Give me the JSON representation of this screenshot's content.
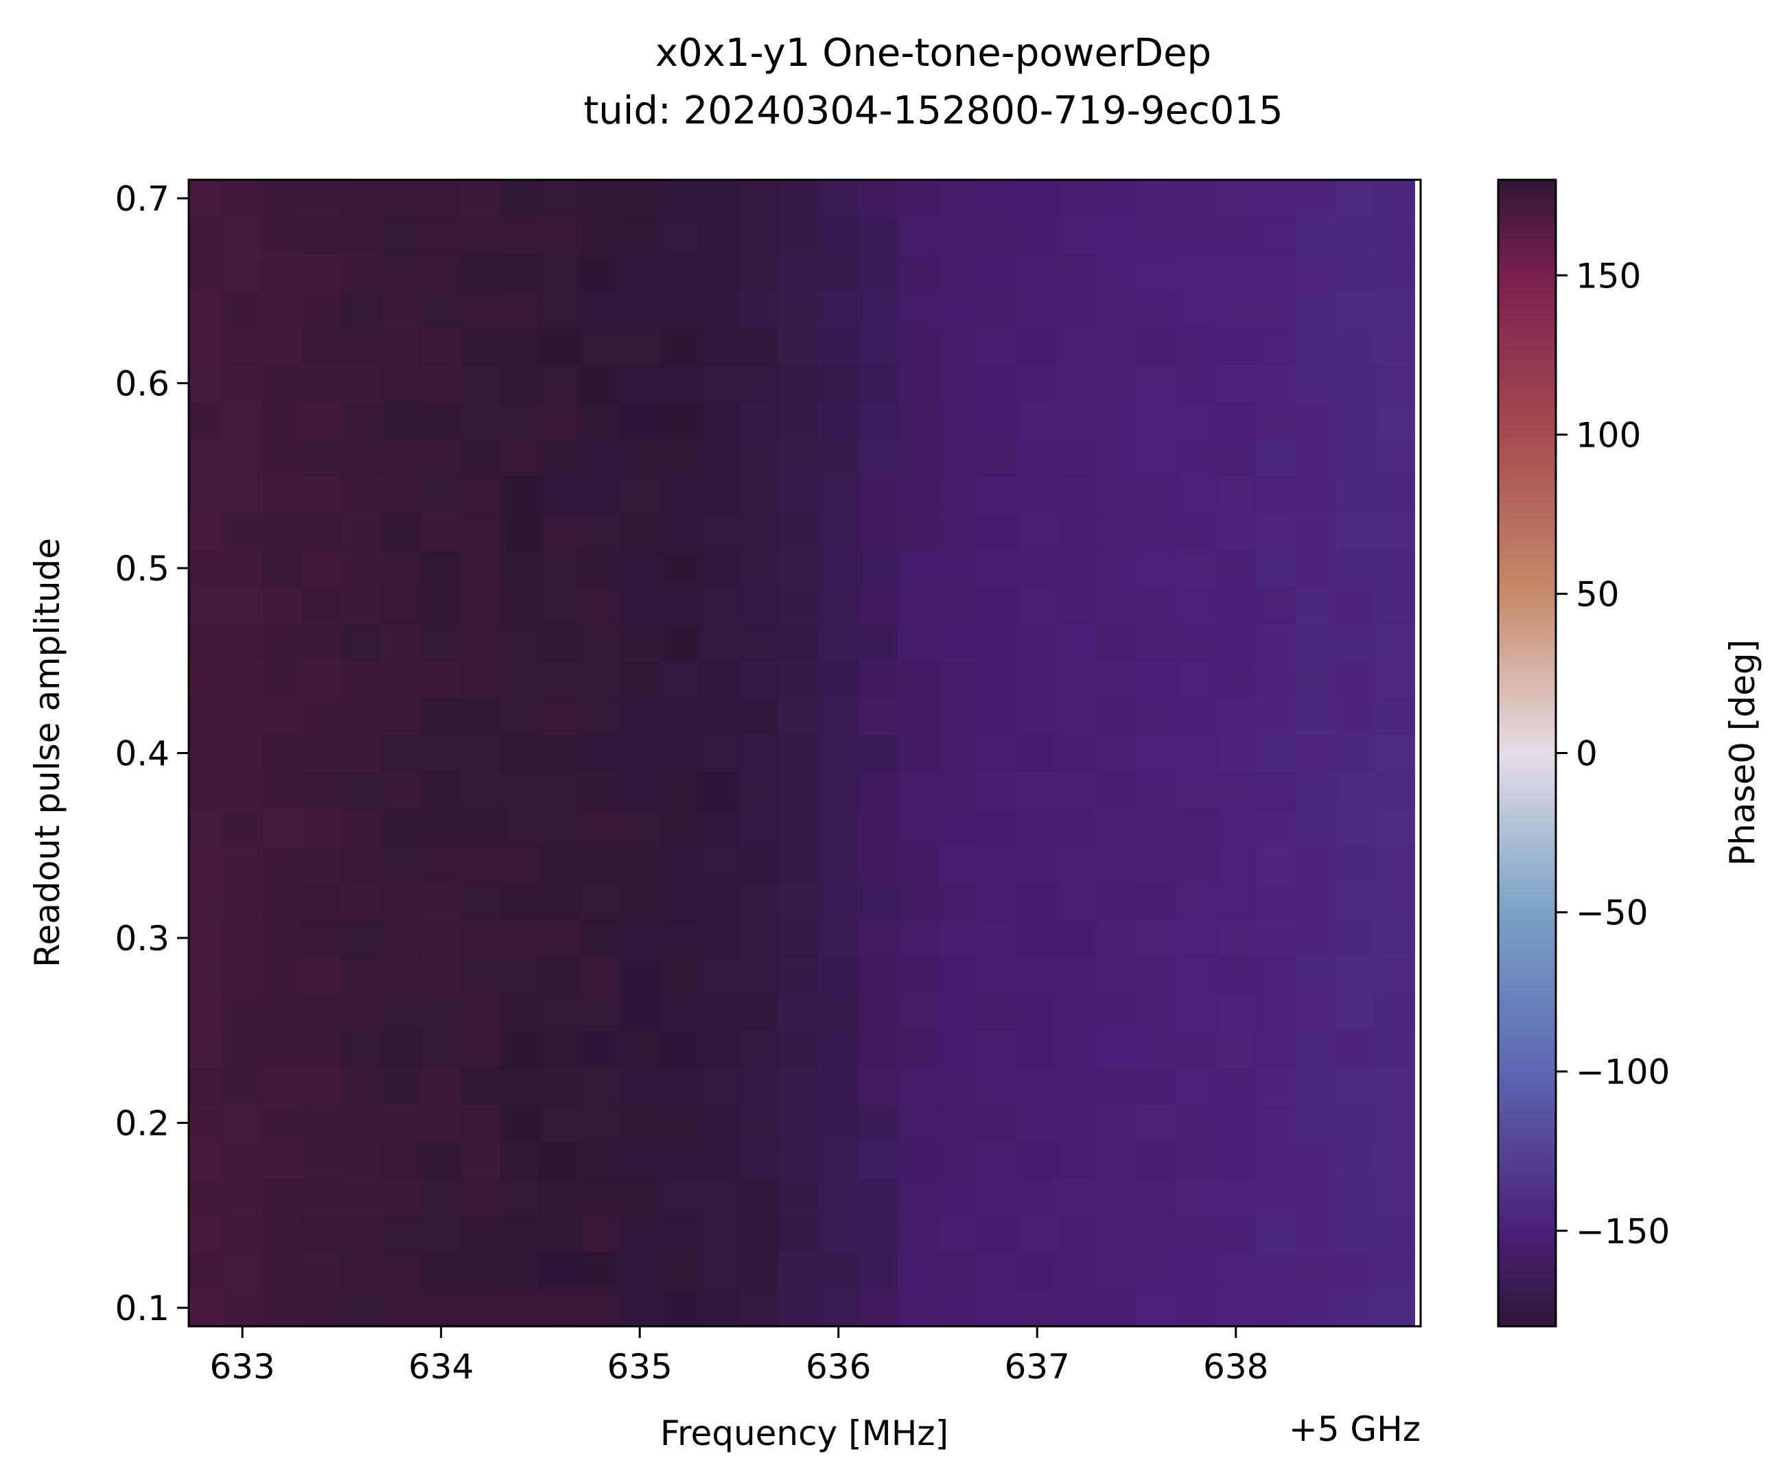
{
  "chart_data": {
    "type": "heatmap",
    "title": "x0x1-y1 One-tone-powerDep",
    "subtitle": "tuid: 20240304-152800-719-9ec015",
    "xlabel": "Frequency [MHz]",
    "x_offset_label": "+5 GHz",
    "ylabel": "Readout pulse amplitude",
    "colorbar_label": "Phase0 [deg]",
    "xlim": [
      632.73,
      638.93
    ],
    "ylim": [
      0.09,
      0.71
    ],
    "clim": [
      -180,
      180
    ],
    "x_ticks": [
      633,
      634,
      635,
      636,
      637,
      638
    ],
    "x_tick_labels": [
      "633",
      "634",
      "635",
      "636",
      "637",
      "638"
    ],
    "y_ticks": [
      0.1,
      0.2,
      0.3,
      0.4,
      0.5,
      0.6,
      0.7
    ],
    "y_tick_labels": [
      "0.1",
      "0.2",
      "0.3",
      "0.4",
      "0.5",
      "0.6",
      "0.7"
    ],
    "cbar_ticks": [
      150,
      100,
      50,
      0,
      -50,
      -100,
      -150
    ],
    "cbar_tick_labels": [
      "150",
      "100",
      "50",
      "0",
      "−50",
      "−100",
      "−150"
    ],
    "colormap": "twilight_shifted",
    "colormap_stops": [
      [
        -180,
        "#2f1637"
      ],
      [
        -150,
        "#4b1f79"
      ],
      [
        -100,
        "#5d67b4"
      ],
      [
        -50,
        "#7aa1c4"
      ],
      [
        0,
        "#e6dde6"
      ],
      [
        50,
        "#c68a6a"
      ],
      [
        100,
        "#a64c51"
      ],
      [
        150,
        "#7a2050"
      ],
      [
        180,
        "#2f1637"
      ]
    ],
    "grid": {
      "n_freq": 31,
      "n_amp": 31,
      "freq_start": 632.8,
      "freq_step": 0.2,
      "amp_start": 0.1,
      "amp_step": 0.02
    },
    "phase_profile": {
      "description": "Phase0 [deg] per frequency column (approx), low-frequency side near +172 deg wrapping through 180 to about -150 deg at high frequency",
      "frequency_MHz": [
        632.8,
        633.2,
        633.6,
        634.0,
        634.4,
        634.8,
        635.2,
        635.6,
        635.8,
        636.0,
        636.2,
        636.4,
        636.8,
        637.2,
        637.6,
        638.0,
        638.4,
        638.8
      ],
      "phase_deg": [
        172,
        174,
        176,
        177,
        178,
        179,
        -179,
        -176,
        -172,
        -168,
        -163,
        -158,
        -155,
        -153,
        -151,
        -149,
        -146,
        -143
      ]
    }
  }
}
